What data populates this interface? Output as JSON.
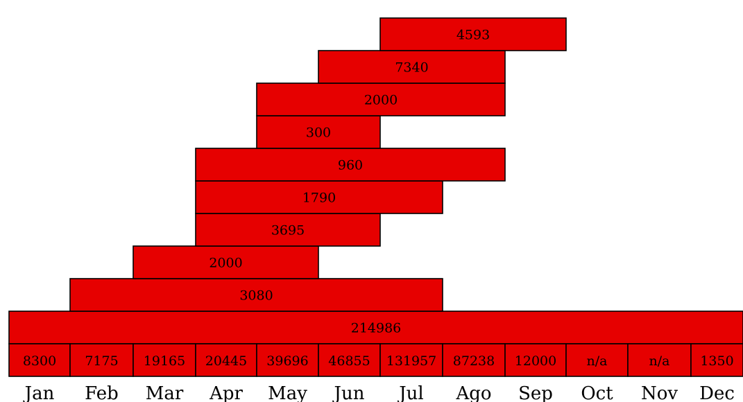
{
  "chart_data": {
    "type": "bar",
    "orientation": "horizontal",
    "categories": [
      "Jan",
      "Feb",
      "Mar",
      "Apr",
      "May",
      "Jun",
      "Jul",
      "Ago",
      "Sep",
      "Oct",
      "Nov",
      "Dec"
    ],
    "month_values": [
      "8300",
      "7175",
      "19165",
      "20445",
      "39696",
      "46855",
      "131957",
      "87238",
      "12000",
      "n/a",
      "n/a",
      "1350"
    ],
    "range_bars": [
      {
        "label": "214986",
        "start": "Jan",
        "end": "Dec"
      },
      {
        "label": "3080",
        "start": "Feb",
        "end": "Jul"
      },
      {
        "label": "2000",
        "start": "Mar",
        "end": "May"
      },
      {
        "label": "3695",
        "start": "Apr",
        "end": "Jun"
      },
      {
        "label": "1790",
        "start": "Apr",
        "end": "Jul"
      },
      {
        "label": "960",
        "start": "Apr",
        "end": "Ago"
      },
      {
        "label": "300",
        "start": "May",
        "end": "Jun"
      },
      {
        "label": "2000",
        "start": "May",
        "end": "Ago"
      },
      {
        "label": "7340",
        "start": "Jun",
        "end": "Ago"
      },
      {
        "label": "4593",
        "start": "Jul",
        "end": "Sep"
      }
    ],
    "colors": {
      "bar_fill": "#e60000",
      "border": "#000000"
    },
    "grid": false,
    "legend": "none"
  }
}
